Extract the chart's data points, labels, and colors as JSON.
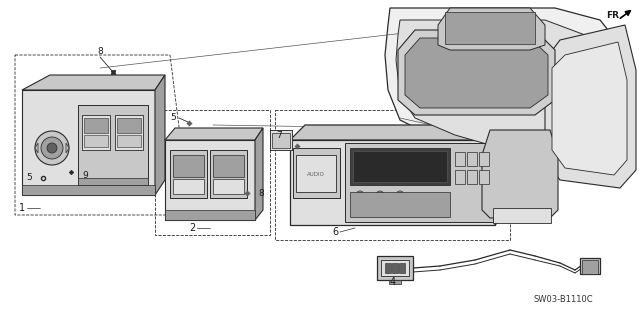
{
  "background_color": "#ffffff",
  "diagram_code": "SW03-B1110C",
  "line_color": "#2a2a2a",
  "text_color": "#1a1a1a",
  "gray_fill": "#c8c8c8",
  "mid_gray": "#a0a0a0",
  "dark_gray": "#606060",
  "light_gray": "#e0e0e0"
}
